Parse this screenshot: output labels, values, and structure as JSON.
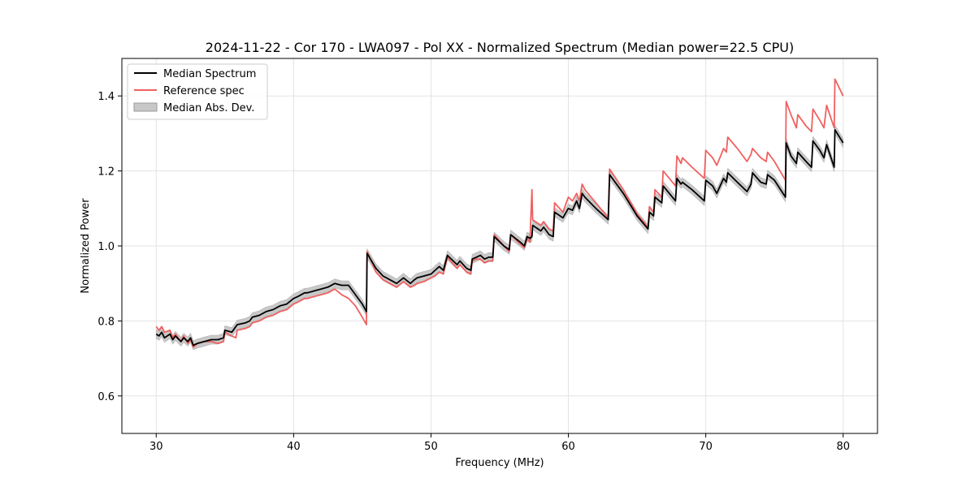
{
  "chart_data": {
    "type": "line",
    "title": "2024-11-22 - Cor 170 - LWA097 - Pol XX - Normalized Spectrum (Median power=22.5 CPU)",
    "xlabel": "Frequency (MHz)",
    "ylabel": "Normalized Power",
    "xlim": [
      27.5,
      82.5
    ],
    "ylim": [
      0.5,
      1.5
    ],
    "xticks": [
      30,
      40,
      50,
      60,
      70,
      80
    ],
    "yticks": [
      0.6,
      0.8,
      1.0,
      1.2,
      1.4
    ],
    "xtick_labels": [
      "30",
      "40",
      "50",
      "60",
      "70",
      "80"
    ],
    "ytick_labels": [
      "0.6",
      "0.8",
      "1.0",
      "1.2",
      "1.4"
    ],
    "grid": true,
    "legend": {
      "position": "top-left",
      "entries": [
        "Median Spectrum",
        "Reference spec",
        "Median Abs. Dev."
      ]
    },
    "colors": {
      "median": "#000000",
      "reference": "#f06060",
      "mad_fill": "#c8c8c8"
    },
    "mad_halfwidth": 0.012,
    "series": [
      {
        "name": "Median Spectrum",
        "x": [
          30.0,
          30.2,
          30.4,
          30.6,
          31.0,
          31.2,
          31.4,
          31.8,
          32.0,
          32.3,
          32.5,
          32.7,
          33.0,
          33.5,
          34.0,
          34.5,
          34.9,
          35.0,
          35.5,
          35.8,
          35.9,
          36.5,
          36.8,
          37.0,
          37.5,
          38.0,
          38.5,
          39.0,
          39.5,
          40.0,
          40.3,
          40.8,
          41.0,
          41.5,
          42.0,
          42.5,
          43.0,
          43.5,
          44.0,
          44.5,
          45.0,
          45.3,
          45.35,
          46.0,
          46.5,
          47.0,
          47.5,
          48.0,
          48.5,
          48.8,
          49.0,
          49.5,
          50.0,
          50.3,
          50.6,
          50.9,
          51.2,
          51.9,
          52.1,
          52.6,
          52.9,
          53.0,
          53.3,
          53.6,
          53.9,
          54.2,
          54.5,
          54.6,
          55.3,
          55.7,
          55.8,
          56.5,
          56.8,
          57.0,
          57.2,
          57.35,
          57.4,
          58.0,
          58.2,
          58.6,
          58.9,
          59.0,
          59.6,
          60.0,
          60.3,
          60.6,
          60.8,
          61.0,
          61.2,
          62.0,
          62.9,
          63.0,
          64.0,
          65.0,
          65.8,
          65.9,
          66.2,
          66.3,
          66.8,
          66.9,
          67.8,
          67.9,
          68.2,
          68.3,
          69.0,
          69.9,
          70.0,
          70.5,
          70.8,
          71.3,
          71.5,
          71.6,
          72.3,
          73.0,
          73.3,
          73.4,
          74.0,
          74.4,
          74.5,
          75.0,
          75.8,
          75.85,
          76.2,
          76.6,
          76.7,
          77.3,
          77.7,
          77.8,
          78.3,
          78.6,
          78.8,
          79.35,
          79.4,
          80.0
        ],
        "y": [
          0.765,
          0.76,
          0.77,
          0.755,
          0.765,
          0.75,
          0.76,
          0.745,
          0.755,
          0.745,
          0.755,
          0.735,
          0.74,
          0.745,
          0.75,
          0.75,
          0.755,
          0.775,
          0.77,
          0.785,
          0.79,
          0.795,
          0.8,
          0.81,
          0.815,
          0.825,
          0.83,
          0.84,
          0.845,
          0.86,
          0.865,
          0.875,
          0.875,
          0.88,
          0.885,
          0.89,
          0.9,
          0.895,
          0.895,
          0.87,
          0.845,
          0.825,
          0.98,
          0.94,
          0.92,
          0.91,
          0.9,
          0.915,
          0.9,
          0.91,
          0.915,
          0.92,
          0.925,
          0.935,
          0.945,
          0.935,
          0.975,
          0.95,
          0.96,
          0.94,
          0.935,
          0.965,
          0.97,
          0.975,
          0.965,
          0.97,
          0.97,
          1.025,
          1.0,
          0.99,
          1.03,
          1.01,
          1.0,
          1.025,
          1.02,
          1.025,
          1.055,
          1.04,
          1.05,
          1.03,
          1.025,
          1.09,
          1.075,
          1.1,
          1.095,
          1.12,
          1.1,
          1.14,
          1.13,
          1.1,
          1.07,
          1.19,
          1.14,
          1.08,
          1.045,
          1.09,
          1.08,
          1.13,
          1.115,
          1.16,
          1.12,
          1.18,
          1.165,
          1.17,
          1.15,
          1.12,
          1.175,
          1.16,
          1.14,
          1.18,
          1.17,
          1.195,
          1.17,
          1.145,
          1.165,
          1.195,
          1.17,
          1.165,
          1.19,
          1.175,
          1.13,
          1.275,
          1.24,
          1.22,
          1.25,
          1.225,
          1.21,
          1.28,
          1.255,
          1.235,
          1.27,
          1.21,
          1.31,
          1.275
        ]
      },
      {
        "name": "Reference spec",
        "x": [
          30.0,
          30.2,
          30.4,
          30.6,
          31.0,
          31.2,
          31.4,
          31.8,
          32.0,
          32.3,
          32.5,
          32.7,
          33.0,
          33.5,
          34.0,
          34.5,
          34.9,
          35.0,
          35.5,
          35.8,
          35.9,
          36.5,
          36.8,
          37.0,
          37.5,
          38.0,
          38.5,
          39.0,
          39.5,
          40.0,
          40.3,
          40.8,
          41.0,
          41.5,
          42.0,
          42.5,
          43.0,
          43.5,
          44.0,
          44.5,
          45.0,
          45.3,
          45.35,
          46.0,
          46.5,
          47.0,
          47.5,
          48.0,
          48.5,
          48.8,
          49.0,
          49.5,
          50.0,
          50.3,
          50.6,
          50.9,
          51.2,
          51.9,
          52.1,
          52.6,
          52.9,
          53.0,
          53.3,
          53.6,
          53.9,
          54.2,
          54.5,
          54.6,
          55.3,
          55.7,
          55.8,
          56.5,
          56.8,
          57.0,
          57.2,
          57.35,
          57.4,
          58.0,
          58.2,
          58.6,
          58.9,
          59.0,
          59.6,
          60.0,
          60.3,
          60.6,
          60.8,
          61.0,
          61.2,
          62.0,
          62.9,
          63.0,
          64.0,
          65.0,
          65.8,
          65.9,
          66.2,
          66.3,
          66.8,
          66.9,
          67.8,
          67.9,
          68.2,
          68.3,
          69.0,
          69.9,
          70.0,
          70.5,
          70.8,
          71.3,
          71.5,
          71.6,
          72.3,
          73.0,
          73.3,
          73.4,
          74.0,
          74.4,
          74.5,
          75.0,
          75.8,
          75.85,
          76.2,
          76.6,
          76.7,
          77.3,
          77.7,
          77.8,
          78.3,
          78.6,
          78.8,
          79.35,
          79.4,
          80.0
        ],
        "y": [
          0.785,
          0.775,
          0.785,
          0.77,
          0.775,
          0.755,
          0.765,
          0.745,
          0.76,
          0.74,
          0.75,
          0.73,
          0.74,
          0.745,
          0.745,
          0.74,
          0.745,
          0.77,
          0.76,
          0.755,
          0.775,
          0.78,
          0.785,
          0.795,
          0.8,
          0.81,
          0.815,
          0.825,
          0.83,
          0.845,
          0.85,
          0.86,
          0.86,
          0.865,
          0.87,
          0.875,
          0.885,
          0.87,
          0.86,
          0.84,
          0.81,
          0.79,
          0.985,
          0.93,
          0.91,
          0.9,
          0.89,
          0.905,
          0.89,
          0.895,
          0.9,
          0.905,
          0.915,
          0.92,
          0.93,
          0.925,
          0.97,
          0.94,
          0.95,
          0.93,
          0.925,
          0.96,
          0.965,
          0.965,
          0.955,
          0.96,
          0.96,
          1.03,
          1.0,
          0.985,
          1.03,
          1.005,
          0.995,
          1.02,
          1.01,
          1.15,
          1.07,
          1.055,
          1.065,
          1.045,
          1.04,
          1.115,
          1.09,
          1.13,
          1.12,
          1.14,
          1.12,
          1.165,
          1.15,
          1.115,
          1.075,
          1.205,
          1.15,
          1.085,
          1.05,
          1.105,
          1.09,
          1.15,
          1.13,
          1.2,
          1.16,
          1.24,
          1.22,
          1.235,
          1.21,
          1.18,
          1.255,
          1.235,
          1.215,
          1.26,
          1.25,
          1.29,
          1.26,
          1.225,
          1.245,
          1.26,
          1.235,
          1.225,
          1.25,
          1.225,
          1.175,
          1.385,
          1.35,
          1.315,
          1.35,
          1.32,
          1.305,
          1.365,
          1.335,
          1.315,
          1.375,
          1.315,
          1.445,
          1.4
        ]
      }
    ]
  }
}
